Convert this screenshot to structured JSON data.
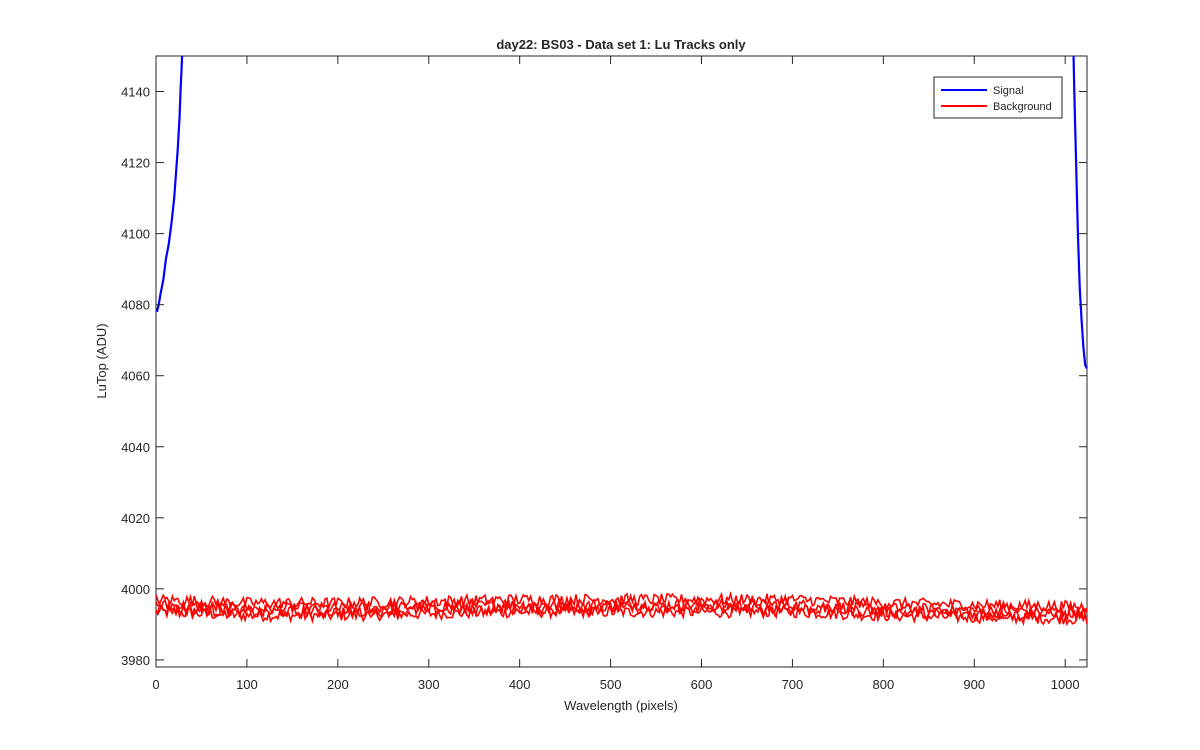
{
  "chart_data": {
    "type": "line",
    "title": "day22: BS03 - Data set 1: Lu Tracks only",
    "xlabel": "Wavelength (pixels)",
    "ylabel": "LuTop (ADU)",
    "xlim": [
      0,
      1024
    ],
    "ylim": [
      3978,
      4150
    ],
    "xticks": [
      0,
      100,
      200,
      300,
      400,
      500,
      600,
      700,
      800,
      900,
      1000
    ],
    "yticks": [
      3980,
      4000,
      4020,
      4040,
      4060,
      4080,
      4100,
      4120,
      4140
    ],
    "grid": false,
    "legend_position": "top-right",
    "series": [
      {
        "name": "Signal",
        "color": "#0000ff",
        "segments": [
          {
            "x": [
              1,
              3,
              5,
              8,
              11,
              14,
              17,
              20,
              22,
              24,
              26,
              27,
              28,
              29
            ],
            "y": [
              4078,
              4080,
              4083,
              4087,
              4093,
              4097,
              4103,
              4110,
              4117,
              4124,
              4133,
              4140,
              4146,
              4152
            ]
          },
          {
            "x": [
              1009,
              1010,
              1012,
              1014,
              1016,
              1018,
              1020,
              1022,
              1024
            ],
            "y": [
              4152,
              4140,
              4120,
              4100,
              4085,
              4076,
              4068,
              4063,
              4062
            ]
          }
        ]
      },
      {
        "name": "Background",
        "color": "#ff0000",
        "baseline": [
          {
            "x": 0,
            "y": 3995
          },
          {
            "x": 100,
            "y": 3994
          },
          {
            "x": 200,
            "y": 3994
          },
          {
            "x": 300,
            "y": 3994.5
          },
          {
            "x": 400,
            "y": 3995
          },
          {
            "x": 500,
            "y": 3995
          },
          {
            "x": 600,
            "y": 3995
          },
          {
            "x": 700,
            "y": 3995
          },
          {
            "x": 800,
            "y": 3994
          },
          {
            "x": 900,
            "y": 3993.5
          },
          {
            "x": 1024,
            "y": 3993
          }
        ],
        "spread": [
          3989,
          4000
        ]
      }
    ]
  }
}
